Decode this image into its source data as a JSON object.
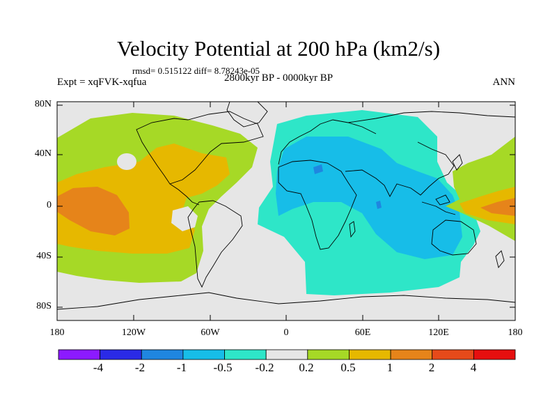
{
  "title": "Velocity Potential at 200 hPa (km2/s)",
  "stats": "rmsd= 0.515122 diff= 8.78243e-05",
  "experiment": "Expt = xqFVK-xqfua",
  "period": "2800kyr BP - 0000kyr BP",
  "season": "ANN",
  "lat_labels": [
    "80N",
    "40N",
    "0",
    "40S",
    "80S"
  ],
  "lon_labels": [
    "180",
    "120W",
    "60W",
    "0",
    "60E",
    "120E",
    "180"
  ],
  "colorbar": {
    "colors": [
      "#8c1aff",
      "#2a2ae6",
      "#1f86e0",
      "#17bde8",
      "#2ee6c8",
      "#e6e6e6",
      "#a6d926",
      "#e6b800",
      "#e6841a",
      "#e64a1a",
      "#e60f0f"
    ],
    "labels": [
      "-4",
      "-2",
      "-1",
      "-0.5",
      "-0.2",
      "0.2",
      "0.5",
      "1",
      "2",
      "4"
    ]
  }
}
